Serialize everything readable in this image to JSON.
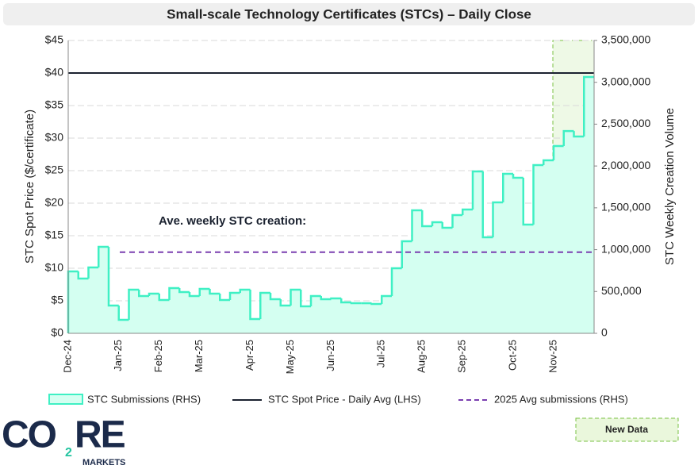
{
  "chart_data": {
    "type": "step-area",
    "title": "Small-scale Technology Certificates (STCs) – Daily Close",
    "y_label": "STC Spot Price ($/certificate)",
    "y2_label": "STC Weekly Creation Volume",
    "annotation": "Ave. weekly STC creation:",
    "new_data_label": "New Data",
    "logo": {
      "part1": "CO",
      "sub": "2",
      "part2": "RE",
      "tagline": "MARKETS"
    },
    "categories": [
      "Dec-24",
      null,
      null,
      null,
      null,
      "Jan-25",
      null,
      null,
      null,
      "Feb-25",
      null,
      null,
      null,
      "Mar-25",
      null,
      null,
      null,
      null,
      "Apr-25",
      null,
      null,
      null,
      "May-25",
      null,
      null,
      null,
      "Jun-25",
      null,
      null,
      null,
      null,
      "Jul-25",
      null,
      null,
      null,
      "Aug-25",
      null,
      null,
      null,
      "Sep-25",
      null,
      null,
      null,
      null,
      "Oct-25",
      null,
      null,
      null,
      "Nov-25",
      null,
      null,
      null
    ],
    "ylim": [
      0,
      45
    ],
    "yticks": [
      {
        "value": 0,
        "label": "$0"
      },
      {
        "value": 5,
        "label": "$5"
      },
      {
        "value": 10,
        "label": "$10"
      },
      {
        "value": 15,
        "label": "$15"
      },
      {
        "value": 20,
        "label": "$20"
      },
      {
        "value": 25,
        "label": "$25"
      },
      {
        "value": 30,
        "label": "$30"
      },
      {
        "value": 35,
        "label": "$35"
      },
      {
        "value": 40,
        "label": "$40"
      },
      {
        "value": 45,
        "label": "$45"
      }
    ],
    "y2lim": [
      0,
      3500000
    ],
    "y2ticks": [
      0,
      {
        "value": 500000,
        "label": "500,000"
      },
      {
        "value": 1000000,
        "label": "1,000,000"
      },
      {
        "value": 1500000,
        "label": "1,500,000"
      },
      {
        "value": 2000000,
        "label": "2,000,000"
      },
      {
        "value": 2500000,
        "label": "2,500,000"
      },
      {
        "value": 3000000,
        "label": "3,000,000"
      },
      {
        "value": 3500000,
        "label": "3,500,000"
      }
    ],
    "grid": true,
    "series": [
      {
        "name": "STC Submissions (RHS)",
        "color": "#3ff0c4",
        "fill": "#d4fff1",
        "axis": "y2",
        "kind": "step-area",
        "values": [
          740000,
          655000,
          787000,
          1034000,
          332000,
          161000,
          522000,
          446000,
          474000,
          398000,
          541000,
          493000,
          446000,
          531000,
          474000,
          398000,
          484000,
          522000,
          171000,
          484000,
          408000,
          332000,
          522000,
          322000,
          446000,
          408000,
          417000,
          370000,
          360000,
          360000,
          351000,
          446000,
          778000,
          1100000,
          1470000,
          1280000,
          1328000,
          1261000,
          1413000,
          1480000,
          1935000,
          1148000,
          1565000,
          1906000,
          1859000,
          1299000,
          2011000,
          2068000,
          2238000,
          2418000,
          2352000,
          3064000
        ]
      },
      {
        "name": "STC Spot Price - Daily Avg (LHS)",
        "color": "#1b2230",
        "axis": "y",
        "kind": "line",
        "values": [
          40,
          40,
          40,
          40,
          40,
          40,
          40,
          40,
          40,
          40,
          40,
          40,
          40,
          40,
          40,
          40,
          40,
          40,
          40,
          40,
          40,
          40,
          40,
          40,
          40,
          40,
          40,
          40,
          40,
          40,
          40,
          40,
          40,
          40,
          40,
          40,
          40,
          40,
          40,
          40,
          40,
          40,
          40,
          40,
          40,
          40,
          40,
          40,
          40,
          40,
          40,
          40
        ]
      },
      {
        "name": "2025 Avg submissions (RHS)",
        "color": "#7a3fb0",
        "axis": "y2",
        "kind": "dashed",
        "values": [
          null,
          null,
          null,
          null,
          null,
          970000,
          970000,
          970000,
          970000,
          970000,
          970000,
          970000,
          970000,
          970000,
          970000,
          970000,
          970000,
          970000,
          970000,
          970000,
          970000,
          970000,
          970000,
          970000,
          970000,
          970000,
          970000,
          970000,
          970000,
          970000,
          970000,
          970000,
          970000,
          970000,
          970000,
          970000,
          970000,
          970000,
          970000,
          970000,
          970000,
          970000,
          970000,
          970000,
          970000,
          970000,
          970000,
          970000,
          970000,
          970000,
          970000,
          970000
        ]
      }
    ]
  }
}
